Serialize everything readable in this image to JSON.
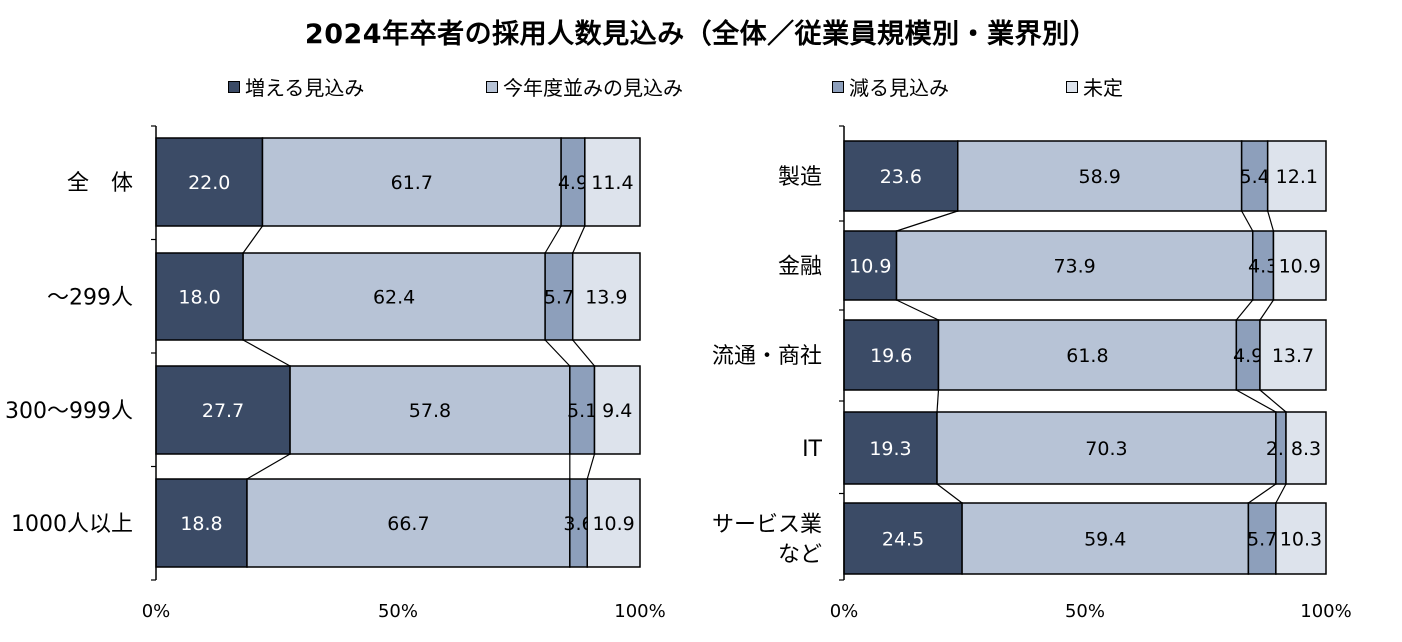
{
  "title": "2024年卒者の採用人数見込み（全体／従業員規模別・業界別）",
  "legend": [
    {
      "label": "増える見込み",
      "color": "#3b4b66"
    },
    {
      "label": "今年度並みの見込み",
      "color": "#b7c3d6"
    },
    {
      "label": "減る見込み",
      "color": "#8d9fbb"
    },
    {
      "label": "未定",
      "color": "#dde3ec"
    }
  ],
  "chart_data": [
    {
      "type": "bar",
      "orientation": "horizontal",
      "stacked": "100%",
      "categories": [
        "全　体",
        "～299人",
        "300～999人",
        "1000人以上"
      ],
      "series": [
        {
          "name": "増える見込み",
          "values": [
            22.0,
            18.0,
            27.7,
            18.8
          ]
        },
        {
          "name": "今年度並みの見込み",
          "values": [
            61.7,
            62.4,
            57.8,
            66.7
          ]
        },
        {
          "name": "減る見込み",
          "values": [
            4.9,
            5.7,
            5.1,
            3.6
          ]
        },
        {
          "name": "未定",
          "values": [
            11.4,
            13.9,
            9.4,
            10.9
          ]
        }
      ],
      "xticks": [
        "0%",
        "50%",
        "100%"
      ],
      "xlim": [
        0,
        100
      ]
    },
    {
      "type": "bar",
      "orientation": "horizontal",
      "stacked": "100%",
      "categories": [
        "製造",
        "金融",
        "流通・商社",
        "IT",
        "サービス業\nなど"
      ],
      "series": [
        {
          "name": "増える見込み",
          "values": [
            23.6,
            10.9,
            19.6,
            19.3,
            24.5
          ]
        },
        {
          "name": "今年度並みの見込み",
          "values": [
            58.9,
            73.9,
            61.8,
            70.3,
            59.4
          ]
        },
        {
          "name": "減る見込み",
          "values": [
            5.4,
            4.3,
            4.9,
            2.1,
            5.7
          ]
        },
        {
          "name": "未定",
          "values": [
            12.1,
            10.9,
            13.7,
            8.3,
            10.3
          ]
        }
      ],
      "xticks": [
        "0%",
        "50%",
        "100%"
      ],
      "xlim": [
        0,
        100
      ]
    }
  ]
}
